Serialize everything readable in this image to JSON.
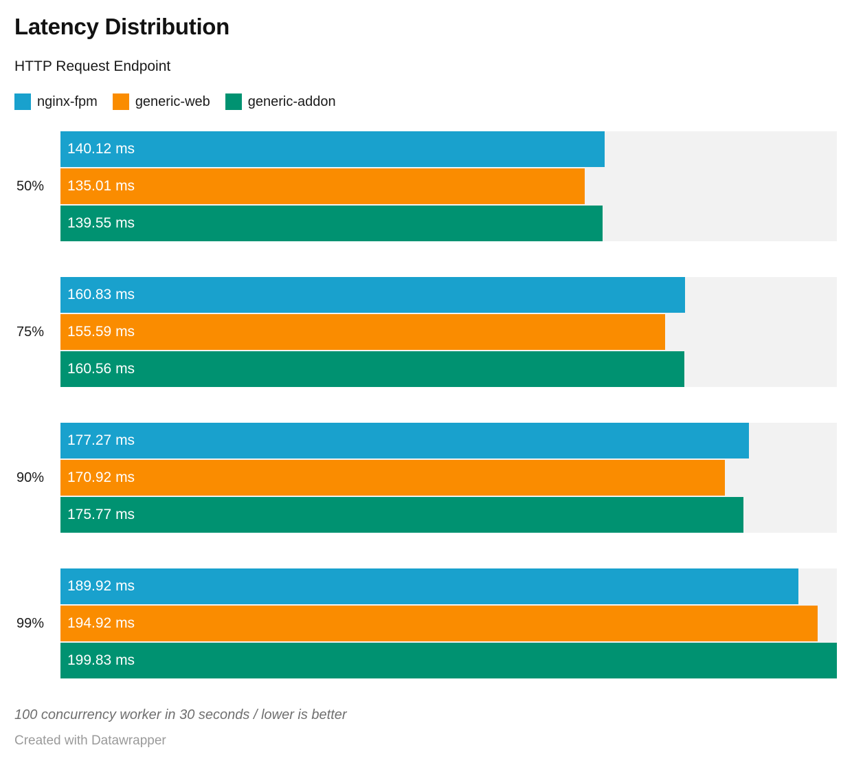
{
  "header": {
    "title": "Latency Distribution",
    "subtitle": "HTTP Request Endpoint"
  },
  "chart_data": {
    "type": "bar",
    "orientation": "horizontal",
    "title": "Latency Distribution",
    "subtitle": "HTTP Request Endpoint",
    "categories": [
      "50%",
      "75%",
      "90%",
      "99%"
    ],
    "series": [
      {
        "name": "nginx-fpm",
        "color": "#19a1cd",
        "values": [
          140.12,
          160.83,
          177.27,
          189.92
        ]
      },
      {
        "name": "generic-web",
        "color": "#fa8c00",
        "values": [
          135.01,
          155.59,
          170.92,
          194.92
        ]
      },
      {
        "name": "generic-addon",
        "color": "#009271",
        "values": [
          139.55,
          160.56,
          175.77,
          199.83
        ]
      }
    ],
    "unit": "ms",
    "xlim": [
      0,
      199.83
    ],
    "grid": false,
    "legend_position": "top",
    "track_color": "#f2f2f2",
    "value_label_color": "#ffffff"
  },
  "footer": {
    "notes": "100 concurrency worker in 30 seconds / lower is better",
    "credit": "Created with Datawrapper"
  }
}
